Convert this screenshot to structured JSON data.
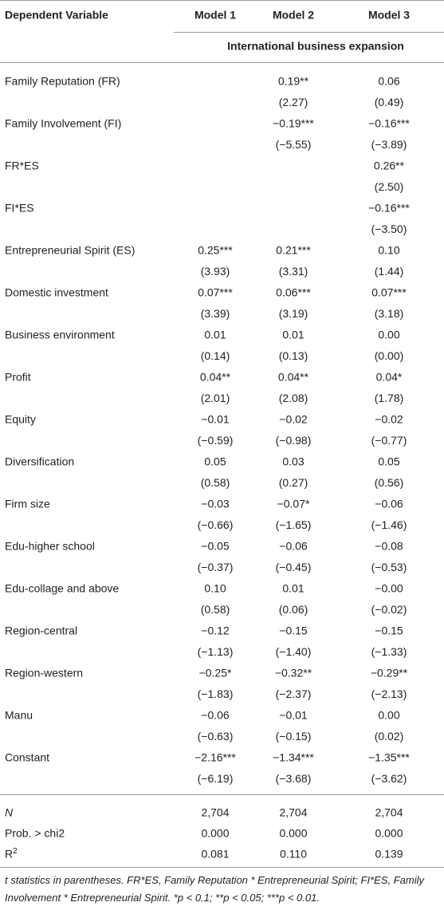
{
  "header": {
    "columns": [
      "Dependent Variable",
      "Model 1",
      "Model 2",
      "Model 3"
    ],
    "subheader": "International business expansion"
  },
  "table": {
    "rows": [
      {
        "label": "Family Reputation (FR)",
        "coef": [
          null,
          "0.19**",
          "0.06"
        ],
        "t": [
          null,
          "(2.27)",
          "(0.49)"
        ]
      },
      {
        "label": "Family Involvement (FI)",
        "coef": [
          null,
          "−0.19***",
          "−0.16***"
        ],
        "t": [
          null,
          "(−5.55)",
          "(−3.89)"
        ]
      },
      {
        "label": "FR*ES",
        "coef": [
          null,
          null,
          "0.26**"
        ],
        "t": [
          null,
          null,
          "(2.50)"
        ]
      },
      {
        "label": "FI*ES",
        "coef": [
          null,
          null,
          "−0.16***"
        ],
        "t": [
          null,
          null,
          "(−3.50)"
        ]
      },
      {
        "label": "Entrepreneurial Spirit (ES)",
        "coef": [
          "0.25***",
          "0.21***",
          "0.10"
        ],
        "t": [
          "(3.93)",
          "(3.31)",
          "(1.44)"
        ]
      },
      {
        "label": "Domestic investment",
        "coef": [
          "0.07***",
          "0.06***",
          "0.07***"
        ],
        "t": [
          "(3.39)",
          "(3.19)",
          "(3.18)"
        ]
      },
      {
        "label": "Business environment",
        "coef": [
          "0.01",
          "0.01",
          "0.00"
        ],
        "t": [
          "(0.14)",
          "(0.13)",
          "(0.00)"
        ]
      },
      {
        "label": "Profit",
        "coef": [
          "0.04**",
          "0.04**",
          "0.04*"
        ],
        "t": [
          "(2.01)",
          "(2.08)",
          "(1.78)"
        ]
      },
      {
        "label": "Equity",
        "coef": [
          "−0.01",
          "−0.02",
          "−0.02"
        ],
        "t": [
          "(−0.59)",
          "(−0.98)",
          "(−0.77)"
        ]
      },
      {
        "label": "Diversification",
        "coef": [
          "0.05",
          "0.03",
          "0.05"
        ],
        "t": [
          "(0.58)",
          "(0.27)",
          "(0.56)"
        ]
      },
      {
        "label": "Firm size",
        "coef": [
          "−0.03",
          "−0.07*",
          "−0.06"
        ],
        "t": [
          "(−0.66)",
          "(−1.65)",
          "(−1.46)"
        ]
      },
      {
        "label": "Edu-higher school",
        "coef": [
          "−0.05",
          "−0.06",
          "−0.08"
        ],
        "t": [
          "(−0.37)",
          "(−0.45)",
          "(−0.53)"
        ]
      },
      {
        "label": "Edu-collage and above",
        "coef": [
          "0.10",
          "0.01",
          "−0.00"
        ],
        "t": [
          "(0.58)",
          "(0.06)",
          "(−0.02)"
        ]
      },
      {
        "label": "Region-central",
        "coef": [
          "−0.12",
          "−0.15",
          "−0.15"
        ],
        "t": [
          "(−1.13)",
          "(−1.40)",
          "(−1.33)"
        ]
      },
      {
        "label": "Region-western",
        "coef": [
          "−0.25*",
          "−0.32**",
          "−0.29**"
        ],
        "t": [
          "(−1.83)",
          "(−2.37)",
          "(−2.13)"
        ]
      },
      {
        "label": "Manu",
        "coef": [
          "−0.06",
          "−0.01",
          "0.00"
        ],
        "t": [
          "(−0.63)",
          "(−0.15)",
          "(0.02)"
        ]
      },
      {
        "label": "Constant",
        "coef": [
          "−2.16***",
          "−1.34***",
          "−1.35***"
        ],
        "t": [
          "(−6.19)",
          "(−3.68)",
          "(−3.62)"
        ]
      }
    ],
    "stats": [
      {
        "label": "N",
        "italic": true,
        "cells": [
          "2,704",
          "2,704",
          "2,704"
        ]
      },
      {
        "label": "Prob. > chi2",
        "italic": false,
        "cells": [
          "0.000",
          "0.000",
          "0.000"
        ]
      },
      {
        "label": "R",
        "sup": "2",
        "italic": false,
        "cells": [
          "0.081",
          "0.110",
          "0.139"
        ]
      }
    ]
  },
  "footnote": "t statistics in parentheses. FR*ES, Family Reputation * Entrepreneurial Spirit; FI*ES, Family Involvement * Entrepreneurial Spirit. *p < 0.1; **p < 0.05; ***p < 0.01."
}
